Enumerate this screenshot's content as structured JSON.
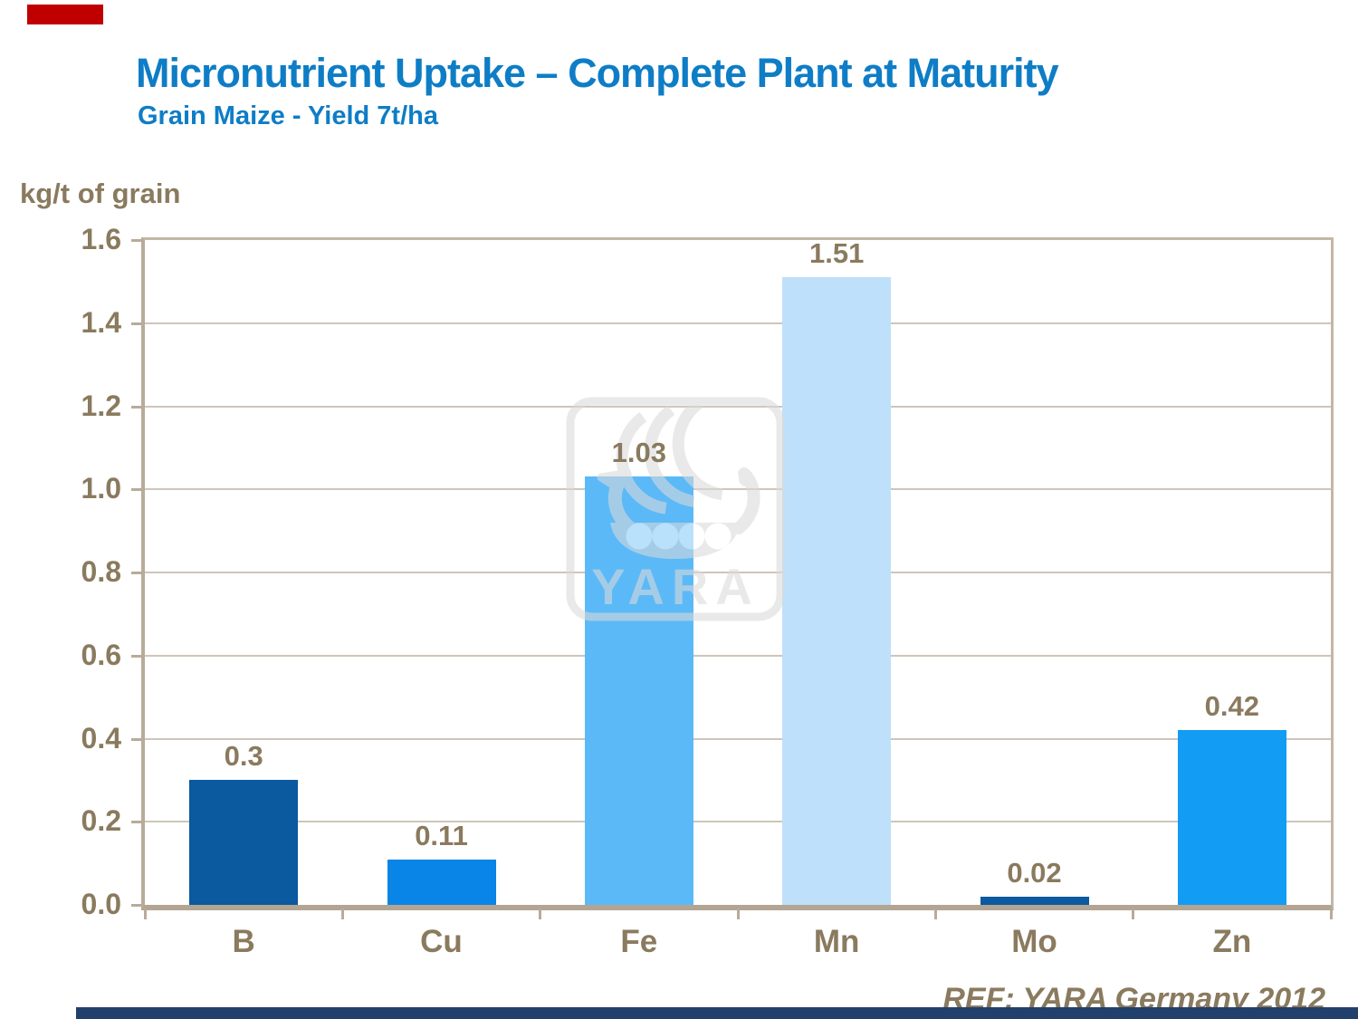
{
  "header": {
    "title": "Micronutrient Uptake – Complete Plant at Maturity",
    "subtitle": "Grain Maize - Yield 7t/ha",
    "title_color": "#0E7DC6"
  },
  "footer": {
    "ref_text": "REF: YARA Germany 2012"
  },
  "watermark": {
    "label": "YARA",
    "icon": "yara-viking-ship-logo",
    "color": "#DADADA"
  },
  "decorations": {
    "red_accent_color": "#C00000",
    "bottom_bar_color": "#21406B"
  },
  "chart_data": {
    "type": "bar",
    "title": "Micronutrient Uptake – Complete Plant at Maturity",
    "subtitle": "Grain Maize - Yield 7t/ha",
    "ylabel": "kg/t of grain",
    "xlabel": "",
    "categories": [
      "B",
      "Cu",
      "Fe",
      "Mn",
      "Mo",
      "Zn"
    ],
    "values": [
      0.3,
      0.11,
      1.03,
      1.51,
      0.02,
      0.42
    ],
    "value_labels": [
      "0.3",
      "0.11",
      "1.03",
      "1.51",
      "0.02",
      "0.42"
    ],
    "bar_colors": [
      "#0B599E",
      "#0885E6",
      "#5CB9F7",
      "#BEE0FA",
      "#0B599E",
      "#129CF4"
    ],
    "ylim": [
      0,
      1.6
    ],
    "ytick_interval": 0.2,
    "yticks": [
      "1.6",
      "1.4",
      "1.2",
      "1.0",
      "0.8",
      "0.6",
      "0.4",
      "0.2",
      "0.0"
    ],
    "grid": true,
    "legend": false,
    "text_color": "#8A7A5E",
    "axis_color": "#B9AB9A",
    "gridline_color": "#CFC5B8"
  }
}
